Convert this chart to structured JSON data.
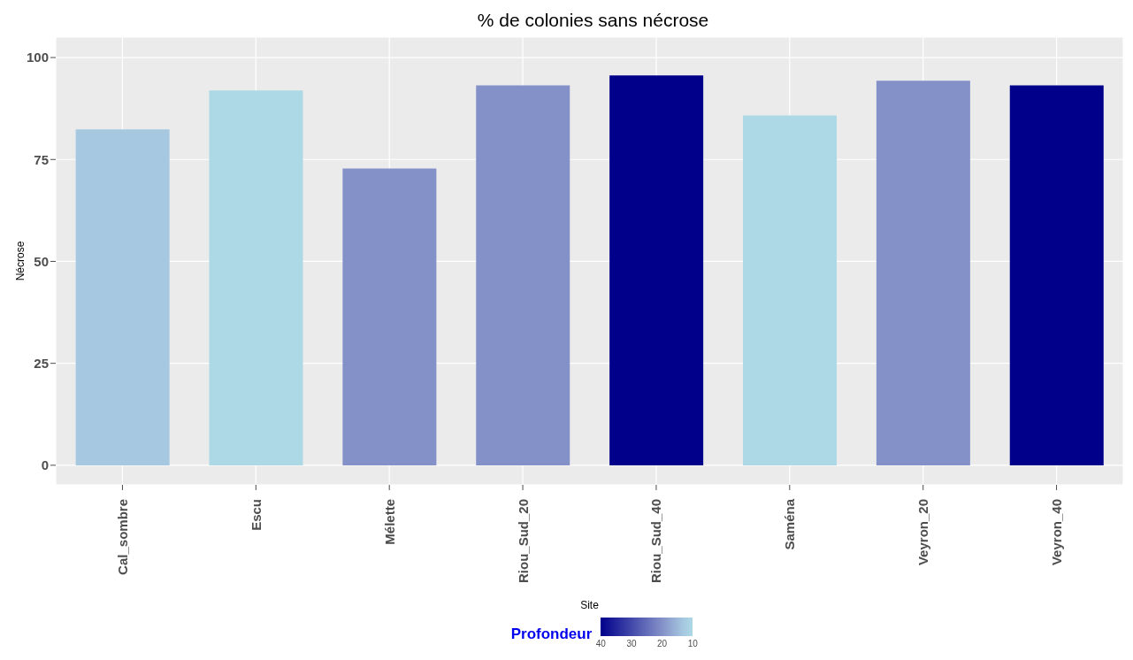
{
  "chart_data": {
    "type": "bar",
    "title": "% de colonies sans nécrose",
    "xlabel": "Site",
    "ylabel": "Nécrose",
    "clabel": "Profondeur",
    "categories": [
      "Cal_sombre",
      "Escu",
      "Mélette",
      "Riou_Sud_20",
      "Riou_Sud_40",
      "Saména",
      "Veyron_20",
      "Veyron_40"
    ],
    "values": [
      82.4,
      91.9,
      72.8,
      93.2,
      95.6,
      85.8,
      94.3,
      93.2
    ],
    "cvalues": [
      13,
      10,
      20,
      20,
      40,
      10,
      20,
      40
    ],
    "colors": [
      "#a6c8e0",
      "#add8e6",
      "#8490c8",
      "#8490c8",
      "#00008b",
      "#add8e6",
      "#8490c8",
      "#00008b"
    ],
    "clim": [
      40,
      10
    ],
    "cticks": [
      40,
      30,
      20,
      10
    ],
    "ylim": [
      -4.8,
      105
    ],
    "yticks": [
      0,
      25,
      50,
      75,
      100
    ],
    "grid": true
  }
}
